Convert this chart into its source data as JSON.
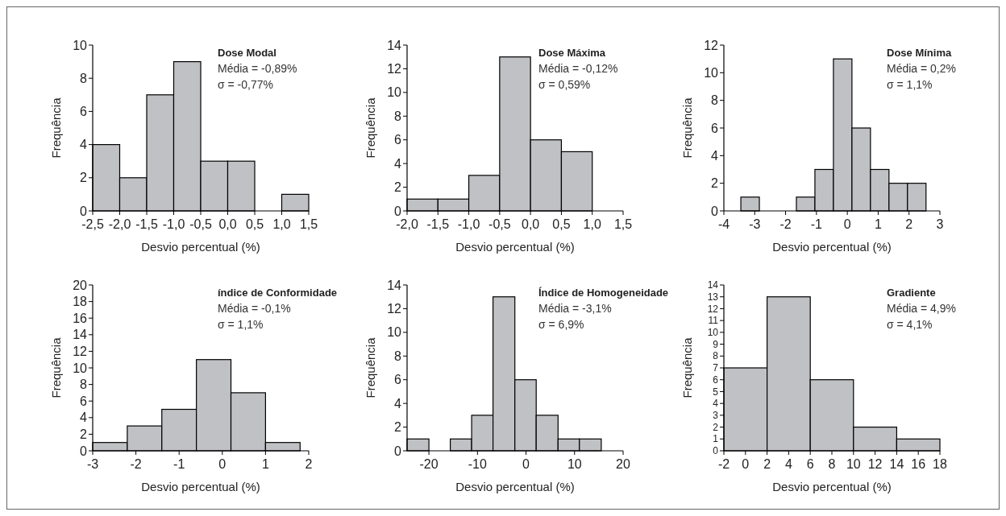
{
  "chart_data": [
    {
      "type": "histogram",
      "title": "Dose Modal",
      "annotations": [
        "Média = -0,89%",
        "σ = -0,77%"
      ],
      "xlabel": "Desvio percentual (%)",
      "ylabel": "Frequência",
      "color": "#c0c1c4",
      "bins": [
        -2.5,
        -2.0,
        -1.5,
        -1.0,
        -0.5,
        0,
        0.5,
        1.0,
        1.5
      ],
      "values": [
        4,
        2,
        7,
        9,
        3,
        3,
        0,
        1
      ],
      "xlim": [
        -2.5,
        1.5
      ],
      "xticks": [
        {
          "value": -2.5,
          "label": "-2,5"
        },
        {
          "value": -2,
          "label": "-2,0"
        },
        {
          "value": -1.5,
          "label": "-1,5"
        },
        {
          "value": -1,
          "label": "-1,0"
        },
        {
          "value": -0.5,
          "label": "-0,5"
        },
        {
          "value": 0,
          "label": "0,0"
        },
        {
          "value": 0.5,
          "label": "0,5"
        },
        {
          "value": 1,
          "label": "1,0"
        },
        {
          "value": 1.5,
          "label": "1,5"
        }
      ],
      "ylim": [
        0,
        10
      ],
      "yticks": [
        0,
        2,
        4,
        6,
        8,
        10
      ]
    },
    {
      "type": "histogram",
      "title": "Dose Máxima",
      "annotations": [
        "Média = -0,12%",
        "σ = 0,59%"
      ],
      "xlabel": "Desvio percentual (%)",
      "ylabel": "Frequência",
      "color": "#c0c1c4",
      "bins": [
        -2.0,
        -1.5,
        -1.0,
        -0.5,
        0,
        0.5,
        1.0
      ],
      "values": [
        1,
        1,
        3,
        13,
        6,
        5
      ],
      "xlim": [
        -2,
        1.5
      ],
      "xticks": [
        {
          "value": -2,
          "label": "-2,0"
        },
        {
          "value": -1.5,
          "label": "-1,5"
        },
        {
          "value": -1,
          "label": "-1,0"
        },
        {
          "value": -0.5,
          "label": "-0,5"
        },
        {
          "value": 0,
          "label": "0,0"
        },
        {
          "value": 0.5,
          "label": "0,5"
        },
        {
          "value": 1,
          "label": "1,0"
        },
        {
          "value": 1.5,
          "label": "1,5"
        }
      ],
      "ylim": [
        0,
        14
      ],
      "yticks": [
        0,
        2,
        4,
        6,
        8,
        10,
        12,
        14
      ]
    },
    {
      "type": "histogram",
      "title": "Dose Mínima",
      "annotations": [
        "Média = 0,2%",
        "σ = 1,1%"
      ],
      "xlabel": "Desvio percentual (%)",
      "ylabel": "Frequência",
      "color": "#c0c1c4",
      "bins": [
        -3.45,
        -2.85,
        -2.25,
        -1.65,
        -1.05,
        -0.45,
        0.15,
        0.75,
        1.35,
        1.95,
        2.55
      ],
      "values": [
        1,
        0,
        0,
        1,
        3,
        11,
        6,
        3,
        2,
        2
      ],
      "xlim": [
        -4,
        3
      ],
      "xticks": [
        -4,
        -3,
        -2,
        -1,
        0,
        1,
        2,
        3
      ],
      "ylim": [
        0,
        12
      ],
      "yticks": [
        0,
        2,
        4,
        6,
        8,
        10,
        12
      ]
    },
    {
      "type": "histogram",
      "title": "índice de Conformidade",
      "annotations": [
        "Média = -0,1%",
        "σ = 1,1%"
      ],
      "xlabel": "Desvio percentual (%)",
      "ylabel": "Frequência",
      "color": "#c0c1c4",
      "bins": [
        -3.0,
        -2.2,
        -1.4,
        -0.6,
        0.2,
        1.0,
        1.8
      ],
      "values": [
        1,
        3,
        5,
        11,
        7,
        1
      ],
      "xlim": [
        -3,
        2
      ],
      "xticks": [
        -3,
        -2,
        -1,
        0,
        1,
        2
      ],
      "ylim": [
        0,
        20
      ],
      "yticks": [
        0,
        2,
        4,
        6,
        8,
        10,
        12,
        14,
        16,
        18,
        20
      ]
    },
    {
      "type": "histogram",
      "title": "Índice de Homogeneidade",
      "annotations": [
        "Média = -3,1%",
        "σ = 6,9%"
      ],
      "xlabel": "Desvio percentual (%)",
      "ylabel": "Frequência",
      "color": "#c0c1c4",
      "bins": [
        -24.5,
        -20.0,
        -15.6,
        -11.2,
        -6.8,
        -2.3,
        2.1,
        6.6,
        11.0,
        15.5
      ],
      "values": [
        1,
        0,
        1,
        3,
        13,
        6,
        3,
        1,
        1
      ],
      "xlim": [
        -24.5,
        20
      ],
      "xticks": [
        -20,
        -10,
        0,
        10,
        20
      ],
      "ylim": [
        0,
        14
      ],
      "yticks": [
        0,
        2,
        4,
        6,
        8,
        10,
        12,
        14
      ]
    },
    {
      "type": "histogram",
      "title": "Gradiente",
      "annotations": [
        "Média = 4,9%",
        "σ = 4,1%"
      ],
      "xlabel": "Desvio percentual (%)",
      "ylabel": "Frequência",
      "color": "#c0c1c4",
      "bins": [
        -2,
        2,
        6,
        10,
        14,
        18
      ],
      "values": [
        7,
        13,
        6,
        2,
        1
      ],
      "xlim": [
        -2,
        18
      ],
      "xticks": [
        -2,
        0,
        2,
        4,
        6,
        8,
        10,
        12,
        14,
        16,
        18
      ],
      "ylim": [
        0,
        14
      ],
      "yticks": [
        0,
        1,
        2,
        3,
        4,
        5,
        6,
        7,
        8,
        9,
        10,
        11,
        12,
        13,
        14
      ]
    }
  ]
}
